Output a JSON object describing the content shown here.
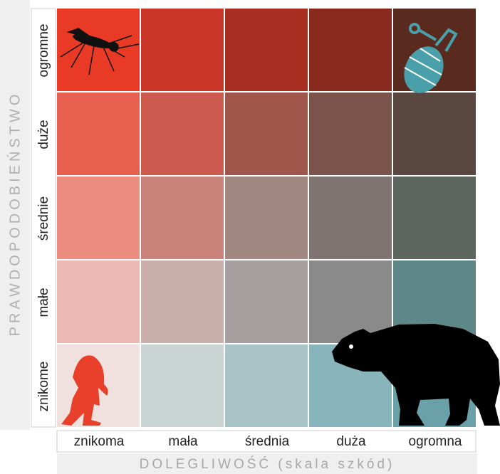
{
  "y_axis_label": "PRAWDOPODOBIEŃSTWO",
  "x_axis_label": "DOLEGLIWOŚĆ (skala szkód)",
  "rows": [
    "ogromne",
    "duże",
    "średnie",
    "małe",
    "znikome"
  ],
  "columns": [
    "znikoma",
    "mała",
    "średnia",
    "duża",
    "ogromna"
  ],
  "cell_colors": [
    [
      "#e83a24",
      "#c93526",
      "#a82e22",
      "#8a2a1e",
      "#5a2a1e"
    ],
    [
      "#e86050",
      "#cc5a4e",
      "#a0564a",
      "#7a544a",
      "#5a4840"
    ],
    [
      "#ec8c80",
      "#c8827a",
      "#a08880",
      "#807472",
      "#5e6660"
    ],
    [
      "#ecb8b2",
      "#c9b0aa",
      "#a8a0a0",
      "#8a8a8a",
      "#5e8888"
    ],
    [
      "#f0e0de",
      "#cad4d2",
      "#a8c4c6",
      "#88b4bc",
      "#6aa0a8"
    ]
  ]
}
